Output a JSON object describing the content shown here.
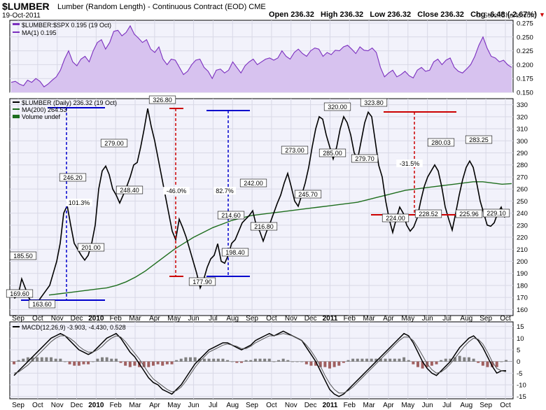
{
  "header": {
    "symbol": "$LUMBER",
    "description": "Lumber (Random Length) - Continuous Contract (EOD)",
    "exchange": "CME",
    "date": "19-Oct-2011",
    "open_label": "Open",
    "open": "236.32",
    "high_label": "High",
    "high": "236.32",
    "low_label": "Low",
    "low": "236.32",
    "close_label": "Close",
    "close": "236.32",
    "chg_label": "Chg",
    "chg": "-6.48 (-2.67%)",
    "watermark": "© StockCharts.com"
  },
  "colors": {
    "panel_bg": "#f2f2fb",
    "ratio_line": "#7b2fbf",
    "ratio_fill": "#d7c2ef",
    "price_line": "#000000",
    "ma200": "#1e6e1e",
    "red_bracket": "#cc0000",
    "blue_bracket": "#0000cc",
    "hist_pos": "#808080",
    "hist_neg": "#a06060",
    "chg_arrow": "#cc0000"
  },
  "chart_data": [
    {
      "type": "area",
      "title": "$LUMBER:$SPX 0.195 (19 Oct)",
      "legend": [
        "MA(1) 0.195"
      ],
      "ylim": [
        0.15,
        0.28
      ],
      "yticks": [
        "0.275",
        "0.250",
        "0.225",
        "0.200",
        "0.175",
        "0.150"
      ],
      "series": [
        {
          "name": "$LUMBER:$SPX",
          "values": [
            0.168,
            0.17,
            0.165,
            0.162,
            0.172,
            0.168,
            0.175,
            0.17,
            0.16,
            0.165,
            0.172,
            0.178,
            0.19,
            0.21,
            0.225,
            0.205,
            0.198,
            0.21,
            0.215,
            0.205,
            0.225,
            0.24,
            0.245,
            0.228,
            0.24,
            0.26,
            0.262,
            0.252,
            0.258,
            0.27,
            0.255,
            0.248,
            0.24,
            0.245,
            0.228,
            0.222,
            0.232,
            0.21,
            0.2,
            0.21,
            0.208,
            0.195,
            0.182,
            0.188,
            0.2,
            0.208,
            0.21,
            0.195,
            0.188,
            0.175,
            0.19,
            0.192,
            0.185,
            0.19,
            0.205,
            0.195,
            0.185,
            0.198,
            0.205,
            0.21,
            0.2,
            0.205,
            0.21,
            0.212,
            0.208,
            0.212,
            0.225,
            0.215,
            0.21,
            0.222,
            0.228,
            0.22,
            0.215,
            0.225,
            0.23,
            0.228,
            0.215,
            0.222,
            0.218,
            0.226,
            0.225,
            0.232,
            0.235,
            0.228,
            0.22,
            0.232,
            0.226,
            0.225,
            0.23,
            0.222,
            0.195,
            0.178,
            0.185,
            0.19,
            0.178,
            0.182,
            0.188,
            0.18,
            0.176,
            0.19,
            0.195,
            0.188,
            0.19,
            0.205,
            0.21,
            0.2,
            0.208,
            0.212,
            0.195,
            0.188,
            0.185,
            0.192,
            0.2,
            0.215,
            0.235,
            0.25,
            0.23,
            0.215,
            0.212,
            0.205,
            0.208,
            0.2,
            0.195
          ]
        }
      ]
    },
    {
      "type": "line",
      "title": "$LUMBER (Daily) 236.32 (19 Oct)",
      "legend": [
        "MA(200) 264.53",
        "Volume undef"
      ],
      "ylim": [
        155,
        335
      ],
      "yticks": [
        "330",
        "320",
        "310",
        "300",
        "290",
        "280",
        "270",
        "260",
        "250",
        "240",
        "230",
        "220",
        "210",
        "200",
        "190",
        "180",
        "170",
        "160"
      ],
      "x_labels": [
        "Sep",
        "Oct",
        "Nov",
        "Dec",
        "2010",
        "Feb",
        "Mar",
        "Apr",
        "May",
        "Jun",
        "Jul",
        "Aug",
        "Sep",
        "Oct",
        "Nov",
        "Dec",
        "2011",
        "Feb",
        "Mar",
        "Apr",
        "May",
        "Jun",
        "Jul",
        "Aug",
        "Sep",
        "Oct"
      ],
      "series": [
        {
          "name": "$LUMBER (Daily)",
          "values": [
            175,
            169.6,
            172,
            185.5,
            178,
            170,
            165,
            163.6,
            168,
            172,
            176,
            180,
            190,
            200,
            215,
            240,
            246.2,
            230,
            215,
            210,
            205,
            201,
            205,
            215,
            230,
            260,
            275,
            279,
            272,
            260,
            255,
            248.4,
            255,
            262,
            270,
            280,
            282,
            295,
            310,
            326.8,
            312,
            300,
            285,
            270,
            255,
            240,
            225,
            218,
            235,
            228,
            220,
            210,
            200,
            190,
            177.9,
            185,
            195,
            202,
            205,
            214.6,
            200,
            198.4,
            205,
            215,
            218,
            225,
            232,
            235,
            238,
            242,
            230,
            225,
            216.8,
            225,
            232,
            240,
            248,
            255,
            265,
            273,
            262,
            250,
            245.7,
            255,
            265,
            278,
            295,
            310,
            320,
            318,
            305,
            295,
            285,
            295,
            310,
            320,
            315,
            305,
            290,
            285,
            300,
            315,
            323.8,
            320,
            300,
            279.7,
            270,
            250,
            235,
            224,
            235,
            245,
            240,
            230,
            225,
            228.5,
            236,
            250,
            262,
            270,
            275,
            280.03,
            275,
            262,
            245,
            235,
            225.96,
            240,
            255,
            268,
            278,
            283.25,
            278,
            265,
            250,
            240,
            230,
            229.1,
            232,
            240,
            245,
            236.32
          ]
        },
        {
          "name": "MA(200)",
          "values": [
            172,
            173,
            174,
            175,
            176,
            177,
            178,
            180,
            183,
            187,
            192,
            198,
            204,
            210,
            215,
            220,
            224,
            228,
            231,
            234,
            236,
            238,
            239,
            240,
            241,
            242,
            243,
            244,
            245,
            246,
            247,
            248,
            249,
            251,
            253,
            255,
            257,
            259,
            260,
            261,
            262,
            263,
            264,
            265,
            266,
            266,
            265,
            264,
            264.53
          ]
        }
      ],
      "annotations": [
        "169.60",
        "185.50",
        "163.60",
        "246.20",
        "101.3%",
        "201.00",
        "279.00",
        "248.40",
        "326.80",
        "-46.0%",
        "177.90",
        "82.7%",
        "214.60",
        "198.40",
        "242.00",
        "216.80",
        "273.00",
        "245.70",
        "320.00",
        "285.00",
        "323.80",
        "279.70",
        "224.00",
        "-31.5%",
        "228.52",
        "280.03",
        "225.96",
        "283.25",
        "229.10"
      ]
    },
    {
      "type": "line",
      "title": "MACD(12,26,9) -3.903, -4.430, 0.528",
      "ylim": [
        -16,
        17
      ],
      "yticks": [
        "15",
        "10",
        "5",
        "0",
        "-5",
        "-10",
        "-15"
      ],
      "x_labels": [
        "Sep",
        "Oct",
        "Nov",
        "Dec",
        "2010",
        "Feb",
        "Mar",
        "Apr",
        "May",
        "Jun",
        "Jul",
        "Aug",
        "Sep",
        "Oct",
        "Nov",
        "Dec",
        "2011",
        "Feb",
        "Mar",
        "Apr",
        "May",
        "Jun",
        "Jul",
        "Aug",
        "Sep",
        "Oct"
      ],
      "series": [
        {
          "name": "MACD",
          "values": [
            -6,
            -4,
            -2,
            0,
            2,
            4,
            6,
            8,
            10,
            11,
            12,
            11,
            9,
            7,
            5,
            4,
            3,
            4,
            6,
            8,
            10,
            11,
            12,
            10,
            7,
            4,
            2,
            -1,
            -4,
            -7,
            -9,
            -10,
            -12,
            -13,
            -14,
            -12,
            -10,
            -7,
            -4,
            -1,
            1,
            3,
            5,
            6,
            7,
            8,
            8,
            7,
            6,
            5,
            6,
            7,
            9,
            10,
            11,
            12,
            11,
            12,
            13,
            12,
            11,
            10,
            9,
            6,
            3,
            0,
            -4,
            -8,
            -12,
            -14,
            -15,
            -14,
            -12,
            -10,
            -8,
            -6,
            -4,
            -2,
            0,
            2,
            4,
            6,
            8,
            10,
            12,
            11,
            8,
            4,
            0,
            -3,
            -5,
            -6,
            -4,
            -2,
            0,
            3,
            6,
            8,
            10,
            11,
            9,
            6,
            2,
            -2,
            -5,
            -4,
            -3.9
          ]
        },
        {
          "name": "Signal",
          "values": [
            -5,
            -4.5,
            -3,
            -1.5,
            0.5,
            2.5,
            4.5,
            6.5,
            8.5,
            10,
            11,
            11,
            10,
            8.5,
            6.5,
            5,
            4,
            4,
            5,
            6.5,
            8.5,
            10,
            11,
            10.5,
            8.5,
            6,
            3.5,
            1,
            -2,
            -5,
            -7.5,
            -9,
            -10.5,
            -12,
            -13,
            -12.5,
            -11,
            -8.5,
            -5.5,
            -2.5,
            0,
            2,
            4,
            5,
            6,
            7,
            7.5,
            7,
            6.5,
            5.5,
            5.5,
            6.5,
            8,
            9,
            10,
            11,
            11,
            11.5,
            12,
            11.5,
            11,
            10,
            9,
            7,
            4.5,
            1.5,
            -2,
            -6,
            -9.5,
            -12,
            -13.5,
            -13.5,
            -12.5,
            -11,
            -9,
            -7,
            -5,
            -3,
            -1,
            1,
            3,
            5,
            7,
            9,
            10.5,
            10.5,
            9,
            6,
            2.5,
            -1,
            -3.5,
            -5,
            -4.5,
            -3,
            -1,
            1.5,
            4,
            6.5,
            8.5,
            10,
            9.5,
            7.5,
            4,
            0,
            -3,
            -4,
            -4.43
          ]
        }
      ]
    }
  ]
}
